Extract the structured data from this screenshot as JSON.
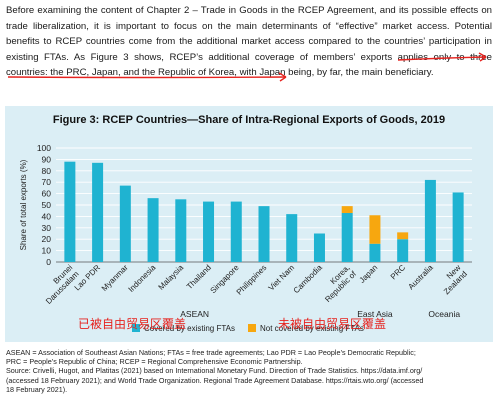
{
  "intro": {
    "part1": "Before examining the content of Chapter 2 – Trade in Goods in the RCEP Agreement, and its possible effects on trade liberalization, it is important to focus on the main determinants of “effective” market access. Potential benefits to RCEP countries come from the additional market access compared to the countries’ participation in existing FTAs. As Figure 3 shows, ",
    "underlined": "RCEP’s additional coverage of members’ exports applies only to three countries",
    "part2": ": the PRC, Japan, and the Republic of Korea, with Japan being, by far, the main beneficiary."
  },
  "chart_data": {
    "type": "bar",
    "stacked": true,
    "title": "Figure 3: RCEP Countries—Share of Intra-Regional Exports of Goods, 2019",
    "ylabel": "Share of total exports (%)",
    "ylim": [
      0,
      100
    ],
    "yticks": [
      0,
      10,
      20,
      30,
      40,
      50,
      60,
      70,
      80,
      90,
      100
    ],
    "grid": true,
    "categories": [
      "Brunei Darussalam",
      "Lao PDR",
      "Myanmar",
      "Indonesia",
      "Malaysia",
      "Thailand",
      "Singapore",
      "Philippines",
      "Viet Nam",
      "Cambodia",
      "Korea, Republic of",
      "Japan",
      "PRC",
      "Australia",
      "New Zealand"
    ],
    "category_labels": [
      [
        "Brunei",
        "Darussalam"
      ],
      [
        "Lao PDR"
      ],
      [
        "Myanmar"
      ],
      [
        "Indonesia"
      ],
      [
        "Malaysia"
      ],
      [
        "Thailand"
      ],
      [
        "Singapore"
      ],
      [
        "Philippines"
      ],
      [
        "Viet Nam"
      ],
      [
        "Cambodia"
      ],
      [
        "Korea,",
        "Republic of"
      ],
      [
        "Japan"
      ],
      [
        "PRC"
      ],
      [
        "Australia"
      ],
      [
        "New",
        "Zealand"
      ]
    ],
    "groups": [
      {
        "name": "ASEAN",
        "from": 0,
        "to": 9
      },
      {
        "name": "East Asia",
        "from": 10,
        "to": 12
      },
      {
        "name": "Oceania",
        "from": 13,
        "to": 14
      }
    ],
    "series": [
      {
        "name": "Covered by existing FTAs",
        "color": "#1fb3d1",
        "values": [
          88,
          87,
          67,
          56,
          55,
          53,
          53,
          49,
          42,
          25,
          43,
          16,
          20,
          72,
          61
        ]
      },
      {
        "name": "Not covered by existing FTAs",
        "color": "#f7a70f",
        "values": [
          0,
          0,
          0,
          0,
          0,
          0,
          0,
          0,
          0,
          0,
          6,
          25,
          6,
          0,
          0
        ]
      }
    ],
    "legend": "bottom-center"
  },
  "annotations": {
    "covered_cn": "已被自由贸易区覆盖",
    "not_covered_cn": "未被自由贸易区覆盖",
    "pen_color": "#e6231f"
  },
  "footnotes": {
    "line1": "ASEAN = Association of Southeast Asian Nations; FTAs = free trade agreements; Lao PDR = Lao People’s Democratic Republic;",
    "line2": "PRC = People’s Republic of China; RCEP = Regional Comprehensive Economic Partnership.",
    "line3": "Source: Crivelli, Hugot, and Platitas (2021) based on International Monetary Fund. Direction of Trade Statistics. https://data.imf.org/",
    "line4": "(accessed 18 February 2021); and World Trade Organization. Regional Trade Agreement Database. https://rtais.wto.org/ (accessed",
    "line5": "18 February 2021)."
  }
}
